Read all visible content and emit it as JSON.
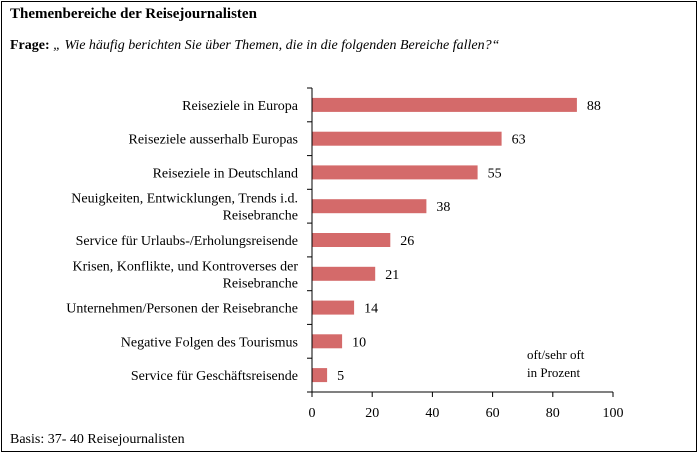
{
  "header": {
    "title": "Themenbereiche der Reisejournalisten",
    "question_label": "Frage:",
    "question_text": "„ Wie häufig berichten Sie über Themen, die in die folgenden Bereiche fallen?“"
  },
  "note": {
    "line1": "oft/sehr oft",
    "line2": "in Prozent"
  },
  "footer": {
    "basis": "Basis:  37- 40 Reisejournalisten"
  },
  "colors": {
    "bar": "#d46a6a",
    "axis": "#000000"
  },
  "chart_data": {
    "type": "bar",
    "orientation": "horizontal",
    "categories": [
      [
        "Reiseziele in Europa"
      ],
      [
        "Reiseziele ausserhalb Europas"
      ],
      [
        "Reiseziele in Deutschland"
      ],
      [
        "Neuigkeiten, Entwicklungen, Trends i.d.",
        "Reisebranche"
      ],
      [
        "Service für Urlaubs-/Erholungsreisende"
      ],
      [
        "Krisen, Konflikte, und Kontroverses der",
        "Reisebranche"
      ],
      [
        "Unternehmen/Personen der Reisebranche"
      ],
      [
        "Negative Folgen des Tourismus"
      ],
      [
        "Service für Geschäftsreisende"
      ]
    ],
    "values": [
      88,
      63,
      55,
      38,
      26,
      21,
      14,
      10,
      5
    ],
    "xlim": [
      0,
      100
    ],
    "xticks": [
      0,
      20,
      40,
      60,
      80,
      100
    ],
    "grid": false,
    "legend": "none"
  }
}
